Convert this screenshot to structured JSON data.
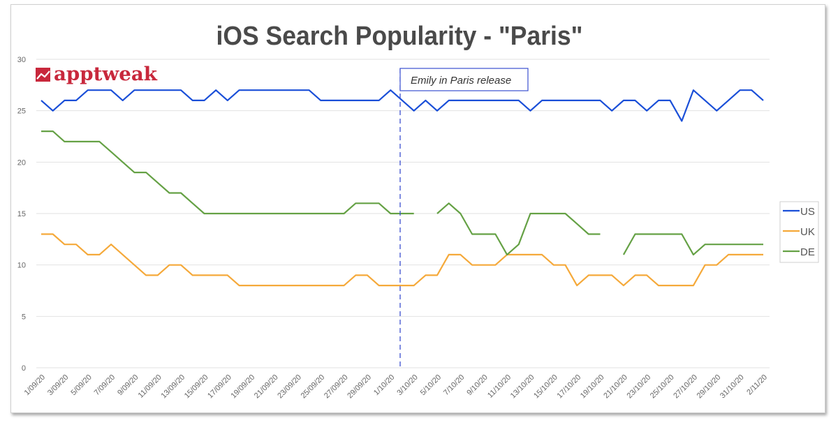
{
  "logo_text": "apptweak",
  "colors": {
    "US": "#1a4fd8",
    "UK": "#f5a93a",
    "DE": "#65a145",
    "logo": "#c8283c",
    "annotation": "#3b4fd0",
    "grid": "#e2e2e2"
  },
  "chart_data": {
    "type": "line",
    "title": "iOS Search Popularity - \"Paris\"",
    "xlabel": "",
    "ylabel": "",
    "ylim": [
      0,
      30
    ],
    "yticks": [
      0,
      5,
      10,
      15,
      20,
      25,
      30
    ],
    "grid": true,
    "legend_position": "right",
    "categories": [
      "1/09/20",
      "2/09/20",
      "3/09/20",
      "4/09/20",
      "5/09/20",
      "6/09/20",
      "7/09/20",
      "8/09/20",
      "9/09/20",
      "10/09/20",
      "11/09/20",
      "12/09/20",
      "13/09/20",
      "14/09/20",
      "15/09/20",
      "16/09/20",
      "17/09/20",
      "18/09/20",
      "19/09/20",
      "20/09/20",
      "21/09/20",
      "22/09/20",
      "23/09/20",
      "24/09/20",
      "25/09/20",
      "26/09/20",
      "27/09/20",
      "28/09/20",
      "29/09/20",
      "30/09/20",
      "1/10/20",
      "2/10/20",
      "3/10/20",
      "4/10/20",
      "5/10/20",
      "6/10/20",
      "7/10/20",
      "8/10/20",
      "9/10/20",
      "10/10/20",
      "11/10/20",
      "12/10/20",
      "13/10/20",
      "14/10/20",
      "15/10/20",
      "16/10/20",
      "17/10/20",
      "18/10/20",
      "19/10/20",
      "20/10/20",
      "21/10/20",
      "22/10/20",
      "23/10/20",
      "24/10/20",
      "25/10/20",
      "26/10/20",
      "27/10/20",
      "28/10/20",
      "29/10/20",
      "30/10/20",
      "31/10/20",
      "1/11/20",
      "2/11/20"
    ],
    "tick_labels_shown_every": 2,
    "series": [
      {
        "name": "US",
        "values": [
          26,
          25,
          26,
          26,
          27,
          27,
          27,
          26,
          27,
          27,
          27,
          27,
          27,
          26,
          26,
          27,
          26,
          27,
          27,
          27,
          27,
          27,
          27,
          27,
          26,
          26,
          26,
          26,
          26,
          26,
          27,
          26,
          25,
          26,
          25,
          26,
          26,
          26,
          26,
          26,
          26,
          26,
          25,
          26,
          26,
          26,
          26,
          26,
          26,
          25,
          26,
          26,
          25,
          26,
          26,
          24,
          27,
          26,
          25,
          26,
          27,
          27,
          26
        ]
      },
      {
        "name": "UK",
        "values": [
          13,
          13,
          12,
          12,
          11,
          11,
          12,
          11,
          10,
          9,
          9,
          10,
          10,
          9,
          9,
          9,
          9,
          8,
          8,
          8,
          8,
          8,
          8,
          8,
          8,
          8,
          8,
          9,
          9,
          8,
          8,
          8,
          8,
          9,
          9,
          11,
          11,
          10,
          10,
          10,
          11,
          11,
          11,
          11,
          10,
          10,
          8,
          9,
          9,
          9,
          8,
          9,
          9,
          8,
          8,
          8,
          8,
          10,
          10,
          11,
          11,
          11,
          11
        ]
      },
      {
        "name": "DE",
        "values": [
          23,
          23,
          22,
          22,
          22,
          22,
          21,
          20,
          19,
          19,
          18,
          17,
          17,
          16,
          15,
          15,
          15,
          15,
          15,
          15,
          15,
          15,
          15,
          15,
          15,
          15,
          15,
          16,
          16,
          16,
          15,
          15,
          15,
          null,
          15,
          16,
          15,
          13,
          13,
          13,
          11,
          12,
          15,
          15,
          15,
          15,
          14,
          13,
          13,
          null,
          11,
          13,
          13,
          13,
          13,
          13,
          11,
          12,
          12,
          12,
          12,
          12,
          12
        ]
      }
    ],
    "annotations": [
      {
        "x": "2/10/20",
        "label": "Emily in Paris release",
        "style": "dashed vertical line"
      }
    ]
  }
}
